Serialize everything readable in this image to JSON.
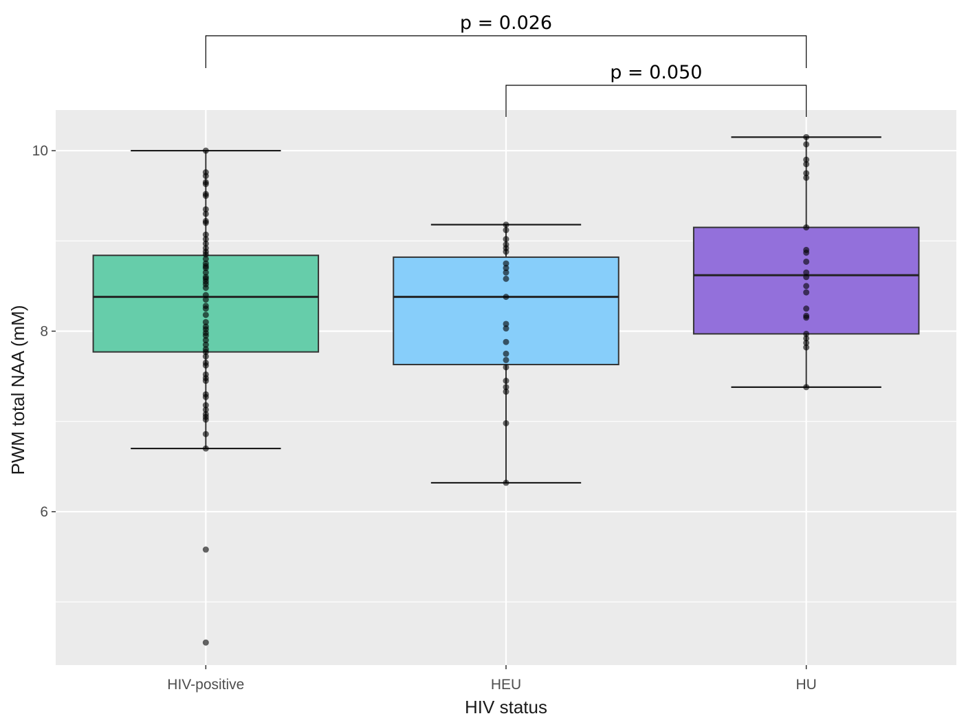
{
  "chart_data": {
    "type": "boxplot",
    "title": "",
    "xlabel": "HIV status",
    "ylabel": "PWM total NAA (mM)",
    "ylim": [
      4.3,
      10.45
    ],
    "y_ticks": [
      6,
      8,
      10
    ],
    "y_minor_ticks": [
      5,
      7,
      9
    ],
    "grid": true,
    "legend": "none",
    "categories": [
      "HIV-positive",
      "HEU",
      "HU"
    ],
    "colors": {
      "HIV-positive": "#66cdaa",
      "HEU": "#87cefa",
      "HU": "#9370db"
    },
    "boxes": [
      {
        "category": "HIV-positive",
        "whisker_low": 6.7,
        "q1": 7.77,
        "median": 8.38,
        "q3": 8.84,
        "whisker_high": 10.0,
        "points": [
          10.0,
          9.76,
          9.72,
          9.65,
          9.63,
          9.52,
          9.5,
          9.35,
          9.3,
          9.22,
          9.2,
          9.07,
          9.02,
          8.97,
          8.92,
          8.88,
          8.85,
          8.8,
          8.75,
          8.72,
          8.7,
          8.65,
          8.6,
          8.58,
          8.55,
          8.52,
          8.48,
          8.4,
          8.35,
          8.28,
          8.25,
          8.18,
          8.1,
          8.05,
          8.02,
          7.98,
          7.95,
          7.9,
          7.85,
          7.8,
          7.77,
          7.72,
          7.65,
          7.62,
          7.52,
          7.48,
          7.45,
          7.3,
          7.27,
          7.18,
          7.13,
          7.08,
          7.05,
          7.02,
          6.86,
          6.7,
          5.58,
          4.55
        ]
      },
      {
        "category": "HEU",
        "whisker_low": 6.32,
        "q1": 7.63,
        "median": 8.38,
        "q3": 8.82,
        "whisker_high": 9.18,
        "points": [
          9.18,
          9.12,
          9.02,
          8.96,
          8.92,
          8.88,
          8.75,
          8.7,
          8.65,
          8.58,
          8.38,
          8.08,
          8.03,
          7.88,
          7.75,
          7.68,
          7.6,
          7.45,
          7.38,
          7.33,
          6.98,
          6.32
        ]
      },
      {
        "category": "HU",
        "whisker_low": 7.38,
        "q1": 7.97,
        "median": 8.62,
        "q3": 9.15,
        "whisker_high": 10.15,
        "points": [
          10.15,
          10.07,
          9.9,
          9.85,
          9.75,
          9.7,
          9.15,
          8.9,
          8.87,
          8.77,
          8.65,
          8.6,
          8.5,
          8.43,
          8.25,
          8.17,
          8.15,
          7.97,
          7.92,
          7.87,
          7.82,
          7.38
        ]
      }
    ],
    "comparisons": [
      {
        "from": "HIV-positive",
        "to": "HU",
        "label": "p = 0.026"
      },
      {
        "from": "HEU",
        "to": "HU",
        "label": "p = 0.050"
      }
    ]
  }
}
